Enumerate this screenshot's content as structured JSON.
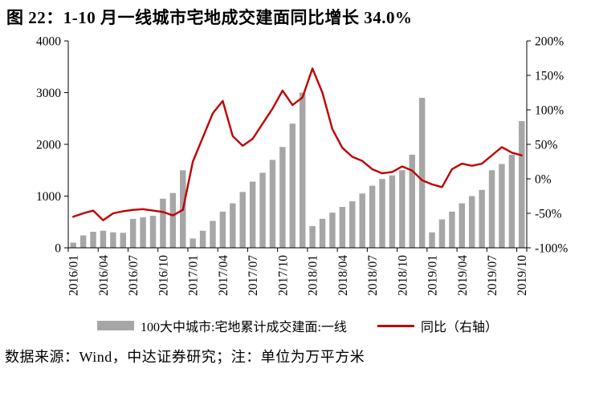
{
  "figure": {
    "title": "图 22：1-10 月一线城市宅地成交建面同比增长 34.0%",
    "footer": "数据来源：Wind，中达证券研究；注：单位为万平方米"
  },
  "legend": {
    "items": [
      {
        "label": "100大中城市:宅地累计成交建面:一线",
        "type": "bar"
      },
      {
        "label": "同比（右轴）",
        "type": "line"
      }
    ]
  },
  "colors": {
    "bar": "#a6a6a6",
    "line": "#c00000",
    "axis": "#000000"
  },
  "chart_data": {
    "type": "combo_bar_line",
    "title": "1-10 月一线城市宅地成交建面同比增长 34.0%",
    "x": [
      "2016/01",
      "2016/02",
      "2016/03",
      "2016/04",
      "2016/05",
      "2016/06",
      "2016/07",
      "2016/08",
      "2016/09",
      "2016/10",
      "2016/11",
      "2016/12",
      "2017/01",
      "2017/02",
      "2017/03",
      "2017/04",
      "2017/05",
      "2017/06",
      "2017/07",
      "2017/08",
      "2017/09",
      "2017/10",
      "2017/11",
      "2017/12",
      "2018/01",
      "2018/02",
      "2018/03",
      "2018/04",
      "2018/05",
      "2018/06",
      "2018/07",
      "2018/08",
      "2018/09",
      "2018/10",
      "2018/11",
      "2018/12",
      "2019/01",
      "2019/02",
      "2019/03",
      "2019/04",
      "2019/05",
      "2019/06",
      "2019/07",
      "2019/08",
      "2019/09",
      "2019/10"
    ],
    "x_tick_interval": 3,
    "x_tick_labels": [
      "2016/01",
      "2016/04",
      "2016/07",
      "2016/10",
      "2017/01",
      "2017/04",
      "2017/07",
      "2017/10",
      "2018/01",
      "2018/04",
      "2018/07",
      "2018/10",
      "2019/01",
      "2019/04",
      "2019/07",
      "2019/10"
    ],
    "series": [
      {
        "name": "100大中城市:宅地累计成交建面:一线",
        "type": "bar",
        "axis": "left",
        "unit": "万平方米",
        "values": [
          100,
          240,
          310,
          330,
          300,
          290,
          560,
          590,
          620,
          950,
          1060,
          1500,
          180,
          330,
          520,
          700,
          860,
          1080,
          1280,
          1450,
          1700,
          1950,
          2400,
          3000,
          420,
          560,
          680,
          790,
          900,
          1050,
          1200,
          1330,
          1400,
          1500,
          1800,
          2900,
          300,
          550,
          700,
          860,
          1000,
          1120,
          1500,
          1620,
          1800,
          2450
        ]
      },
      {
        "name": "同比（右轴）",
        "type": "line",
        "axis": "right",
        "unit": "%",
        "values": [
          -55,
          -50,
          -46,
          -60,
          -50,
          -47,
          -45,
          -44,
          -46,
          -48,
          -53,
          -45,
          25,
          60,
          95,
          113,
          62,
          48,
          58,
          80,
          102,
          128,
          107,
          118,
          160,
          125,
          72,
          45,
          32,
          26,
          14,
          8,
          10,
          18,
          12,
          -2,
          -8,
          -12,
          14,
          22,
          19,
          22,
          34,
          46,
          38,
          34
        ]
      }
    ],
    "left_axis": {
      "min": 0,
      "max": 4000,
      "tick_values": [
        0,
        1000,
        2000,
        3000,
        4000
      ],
      "tick_labels": [
        "0",
        "1000",
        "2000",
        "3000",
        "4000"
      ]
    },
    "right_axis": {
      "min": -100,
      "max": 200,
      "tick_values": [
        -100,
        -50,
        0,
        50,
        100,
        150,
        200
      ],
      "tick_labels": [
        "-100%",
        "-50%",
        "0%",
        "50%",
        "100%",
        "150%",
        "200%"
      ]
    },
    "grid": false,
    "legend_position": "bottom"
  }
}
